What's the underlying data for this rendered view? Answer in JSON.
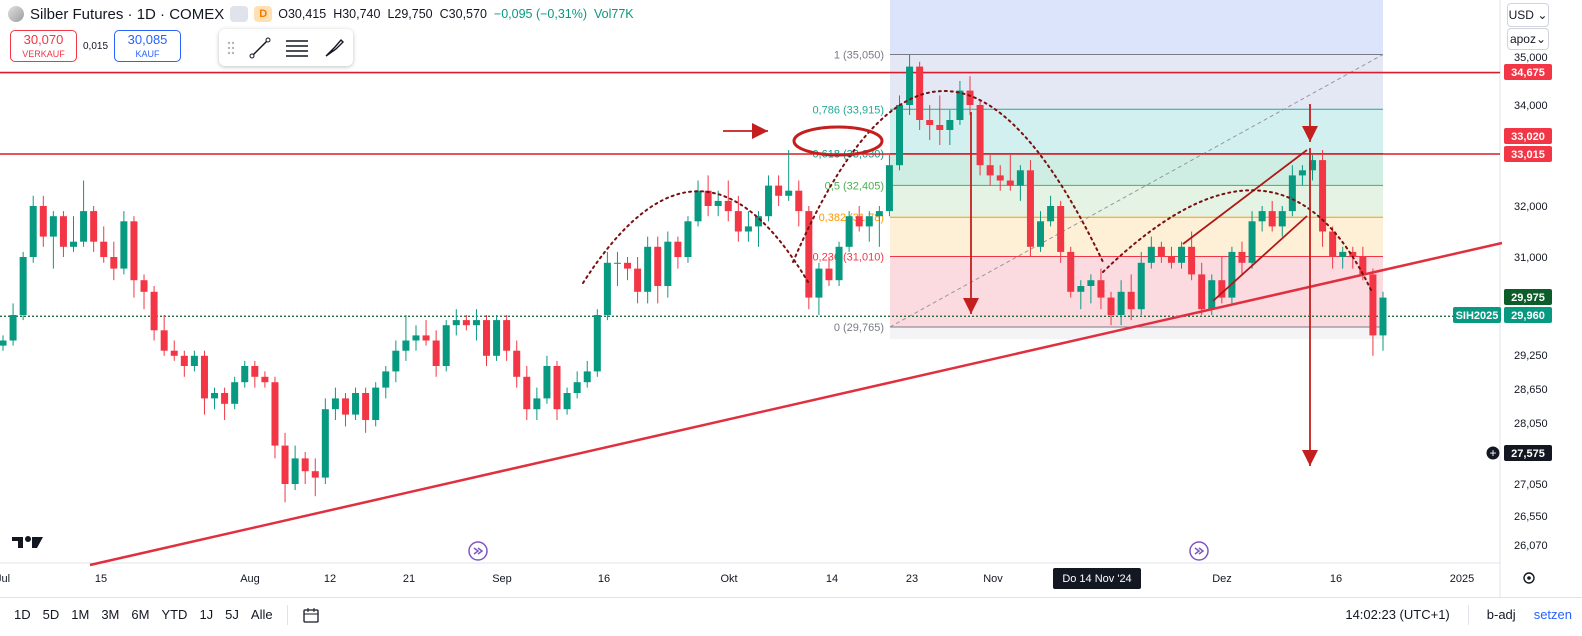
{
  "header": {
    "title": "Silber Futures · 1D · COMEX",
    "pill_d": "D",
    "open": "O30,415",
    "high": "H30,740",
    "low": "L29,750",
    "close": "C30,570",
    "change": "−0,095 (−0,31%)",
    "volume": "Vol77K"
  },
  "trade": {
    "sell_price": "30,070",
    "sell_label": "VERKAUF",
    "spread": "0,015",
    "buy_price": "30,085",
    "buy_label": "KAUF"
  },
  "currency": "USD",
  "currency_caret": "⌄",
  "scale_mode": "apoz",
  "bottom": {
    "timeframes": [
      "1D",
      "5D",
      "1M",
      "3M",
      "6M",
      "YTD",
      "1J",
      "5J",
      "Alle"
    ],
    "time": "14:02:23 (UTC+1)",
    "adj": "b-adj",
    "settings": "setzen"
  },
  "colors": {
    "up": "#089981",
    "down": "#f23645",
    "line": "#e03040",
    "dark_red": "#b01818",
    "grid": "#f0f3fa"
  },
  "chart_data": {
    "type": "candlestick",
    "y_axis_ticks": [
      "35,000",
      "34,000",
      "32,000",
      "31,000",
      "29,250",
      "28,650",
      "28,050",
      "27,050",
      "26,550",
      "26,070"
    ],
    "x_axis_ticks": [
      "Jul",
      "15",
      "Aug",
      "12",
      "21",
      "Sep",
      "16",
      "Okt",
      "14",
      "23",
      "Nov",
      "Dez",
      "16",
      "2025"
    ],
    "crosshair_label": "Do 14 Nov '24",
    "price_labels": [
      {
        "text": "34,675",
        "color": "#f23645"
      },
      {
        "text": "33,020",
        "color": "#f23645"
      },
      {
        "text": "33,015",
        "color": "#f23645"
      },
      {
        "text": "29,975",
        "color": "#0d5d2a"
      },
      {
        "text": "SIH2025",
        "color": "#089981"
      },
      {
        "text": "29,960",
        "color": "#089981"
      },
      {
        "text": "27,575",
        "color": "#131722"
      }
    ],
    "fib_levels": [
      {
        "label": "1 (35,050)",
        "value": 35.05,
        "color": "#787b86"
      },
      {
        "label": "0,786 (33,915)",
        "value": 33.915,
        "color": "#22ab94"
      },
      {
        "label": "0,618 (33,030)",
        "value": 33.03,
        "color": "#089981"
      },
      {
        "label": "0,5 (32,405)",
        "value": 32.405,
        "color": "#4caf50"
      },
      {
        "label": "0,382 (31,78)",
        "value": 31.78,
        "color": "#ff9800"
      },
      {
        "label": "0,236 (31,010)",
        "value": 31.01,
        "color": "#f23645"
      },
      {
        "label": "0 (29,765)",
        "value": 29.765,
        "color": "#787b86"
      }
    ],
    "horizontal_lines": [
      34.675,
      33.02,
      29.975
    ],
    "candles": [
      [
        29.4,
        29.6,
        29.3,
        29.5
      ],
      [
        29.5,
        30.2,
        29.4,
        30.0
      ],
      [
        30.0,
        31.1,
        29.9,
        31.0
      ],
      [
        31.0,
        32.2,
        30.9,
        32.0
      ],
      [
        32.0,
        32.2,
        31.2,
        31.4
      ],
      [
        31.4,
        31.9,
        30.8,
        31.8
      ],
      [
        31.8,
        31.9,
        31.0,
        31.2
      ],
      [
        31.2,
        31.8,
        31.1,
        31.3
      ],
      [
        31.3,
        32.5,
        31.2,
        31.9
      ],
      [
        31.9,
        32.0,
        31.1,
        31.3
      ],
      [
        31.3,
        31.6,
        30.9,
        31.0
      ],
      [
        31.0,
        31.3,
        30.6,
        30.8
      ],
      [
        30.8,
        31.9,
        30.7,
        31.7
      ],
      [
        31.7,
        31.8,
        30.3,
        30.6
      ],
      [
        30.6,
        30.7,
        30.1,
        30.4
      ],
      [
        30.4,
        30.5,
        29.5,
        29.7
      ],
      [
        29.7,
        30.0,
        29.2,
        29.3
      ],
      [
        29.3,
        29.5,
        29.1,
        29.2
      ],
      [
        29.2,
        29.3,
        28.8,
        29.0
      ],
      [
        29.0,
        29.3,
        28.9,
        29.2
      ],
      [
        29.2,
        29.3,
        28.1,
        28.4
      ],
      [
        28.4,
        28.6,
        28.2,
        28.5
      ],
      [
        28.5,
        28.6,
        28.0,
        28.3
      ],
      [
        28.3,
        28.8,
        28.2,
        28.7
      ],
      [
        28.7,
        29.1,
        28.6,
        29.0
      ],
      [
        29.0,
        29.1,
        28.6,
        28.8
      ],
      [
        28.8,
        28.9,
        28.6,
        28.7
      ],
      [
        28.7,
        28.8,
        27.4,
        27.6
      ],
      [
        27.6,
        27.8,
        26.7,
        27.0
      ],
      [
        27.0,
        27.6,
        26.9,
        27.4
      ],
      [
        27.4,
        27.5,
        27.0,
        27.2
      ],
      [
        27.2,
        27.4,
        26.8,
        27.1
      ],
      [
        27.1,
        28.4,
        27.0,
        28.2
      ],
      [
        28.2,
        28.6,
        28.0,
        28.4
      ],
      [
        28.4,
        28.5,
        27.9,
        28.1
      ],
      [
        28.1,
        28.6,
        28.0,
        28.5
      ],
      [
        28.5,
        28.6,
        27.8,
        28.0
      ],
      [
        28.0,
        28.7,
        27.9,
        28.6
      ],
      [
        28.6,
        29.0,
        28.4,
        28.9
      ],
      [
        28.9,
        29.5,
        28.7,
        29.3
      ],
      [
        29.3,
        30.0,
        29.1,
        29.5
      ],
      [
        29.5,
        29.8,
        29.3,
        29.6
      ],
      [
        29.6,
        29.9,
        29.4,
        29.5
      ],
      [
        29.5,
        29.7,
        28.8,
        29.0
      ],
      [
        29.0,
        29.9,
        28.9,
        29.8
      ],
      [
        29.8,
        30.1,
        29.6,
        29.9
      ],
      [
        29.9,
        30.0,
        29.7,
        29.8
      ],
      [
        29.8,
        30.1,
        29.5,
        29.9
      ],
      [
        29.9,
        30.0,
        29.0,
        29.2
      ],
      [
        29.2,
        30.0,
        29.1,
        29.9
      ],
      [
        29.9,
        30.0,
        29.1,
        29.3
      ],
      [
        29.3,
        29.5,
        28.6,
        28.8
      ],
      [
        28.8,
        29.0,
        28.0,
        28.2
      ],
      [
        28.2,
        28.6,
        28.0,
        28.4
      ],
      [
        28.4,
        29.2,
        28.3,
        29.0
      ],
      [
        29.0,
        29.1,
        28.0,
        28.2
      ],
      [
        28.2,
        28.6,
        28.1,
        28.5
      ],
      [
        28.5,
        28.9,
        28.4,
        28.7
      ],
      [
        28.7,
        29.1,
        28.6,
        28.9
      ],
      [
        28.9,
        30.1,
        28.8,
        30.0
      ],
      [
        30.0,
        31.1,
        29.9,
        30.9
      ],
      [
        30.9,
        31.1,
        30.5,
        30.9
      ],
      [
        30.9,
        31.0,
        30.6,
        30.8
      ],
      [
        30.8,
        31.0,
        30.2,
        30.4
      ],
      [
        30.4,
        31.4,
        30.2,
        31.2
      ],
      [
        31.2,
        31.4,
        30.2,
        30.5
      ],
      [
        30.5,
        31.5,
        30.3,
        31.3
      ],
      [
        31.3,
        31.4,
        30.8,
        31.0
      ],
      [
        31.0,
        31.8,
        30.9,
        31.7
      ],
      [
        31.7,
        32.5,
        31.6,
        32.3
      ],
      [
        32.3,
        32.6,
        31.8,
        32.0
      ],
      [
        32.0,
        32.3,
        31.8,
        32.1
      ],
      [
        32.1,
        32.5,
        31.7,
        31.9
      ],
      [
        31.9,
        32.2,
        31.3,
        31.5
      ],
      [
        31.5,
        31.9,
        31.3,
        31.6
      ],
      [
        31.6,
        31.9,
        31.2,
        31.8
      ],
      [
        31.8,
        32.6,
        31.7,
        32.4
      ],
      [
        32.4,
        32.6,
        32.0,
        32.2
      ],
      [
        32.2,
        33.1,
        32.1,
        32.3
      ],
      [
        32.3,
        32.5,
        31.6,
        31.9
      ],
      [
        31.9,
        32.0,
        30.1,
        30.3
      ],
      [
        30.3,
        30.9,
        30.0,
        30.8
      ],
      [
        30.8,
        31.0,
        30.5,
        30.6
      ],
      [
        30.6,
        31.3,
        30.5,
        31.2
      ],
      [
        31.2,
        31.9,
        31.1,
        31.8
      ],
      [
        31.8,
        32.0,
        31.5,
        31.6
      ],
      [
        31.6,
        31.9,
        31.3,
        31.8
      ],
      [
        31.8,
        32.0,
        31.2,
        31.9
      ],
      [
        31.9,
        33.0,
        31.8,
        32.8
      ],
      [
        32.8,
        34.2,
        32.7,
        34.0
      ],
      [
        34.0,
        35.05,
        33.8,
        34.8
      ],
      [
        34.8,
        34.9,
        33.5,
        33.7
      ],
      [
        33.7,
        34.0,
        33.3,
        33.6
      ],
      [
        33.6,
        34.2,
        33.2,
        33.5
      ],
      [
        33.5,
        33.9,
        33.2,
        33.7
      ],
      [
        33.7,
        34.5,
        33.6,
        34.3
      ],
      [
        34.3,
        34.6,
        33.8,
        34.0
      ],
      [
        34.0,
        34.1,
        32.6,
        32.8
      ],
      [
        32.8,
        33.0,
        32.4,
        32.6
      ],
      [
        32.6,
        32.8,
        32.3,
        32.5
      ],
      [
        32.5,
        33.0,
        32.3,
        32.4
      ],
      [
        32.4,
        32.8,
        32.1,
        32.7
      ],
      [
        32.7,
        32.9,
        31.0,
        31.2
      ],
      [
        31.2,
        31.9,
        31.1,
        31.7
      ],
      [
        31.7,
        32.2,
        31.6,
        32.0
      ],
      [
        32.0,
        32.1,
        30.9,
        31.1
      ],
      [
        31.1,
        31.2,
        30.3,
        30.4
      ],
      [
        30.4,
        30.6,
        30.1,
        30.5
      ],
      [
        30.5,
        30.7,
        30.2,
        30.6
      ],
      [
        30.6,
        30.8,
        30.1,
        30.3
      ],
      [
        30.3,
        30.4,
        29.8,
        30.0
      ],
      [
        30.0,
        30.6,
        29.8,
        30.4
      ],
      [
        30.4,
        30.7,
        29.9,
        30.1
      ],
      [
        30.1,
        31.1,
        30.0,
        30.9
      ],
      [
        30.9,
        31.4,
        30.8,
        31.2
      ],
      [
        31.2,
        31.3,
        30.9,
        31.0
      ],
      [
        31.0,
        31.2,
        30.8,
        30.9
      ],
      [
        30.9,
        31.3,
        30.8,
        31.2
      ],
      [
        31.2,
        31.5,
        30.6,
        30.7
      ],
      [
        30.7,
        30.9,
        30.0,
        30.1
      ],
      [
        30.1,
        30.7,
        30.0,
        30.6
      ],
      [
        30.6,
        31.0,
        30.2,
        30.3
      ],
      [
        30.3,
        31.2,
        30.2,
        31.1
      ],
      [
        31.1,
        31.3,
        30.7,
        30.9
      ],
      [
        30.9,
        31.9,
        30.8,
        31.7
      ],
      [
        31.7,
        32.0,
        31.5,
        31.9
      ],
      [
        31.9,
        32.1,
        31.5,
        31.6
      ],
      [
        31.6,
        32.0,
        31.4,
        31.9
      ],
      [
        31.9,
        32.8,
        31.8,
        32.6
      ],
      [
        32.6,
        32.8,
        32.4,
        32.7
      ],
      [
        32.7,
        33.0,
        32.5,
        32.9
      ],
      [
        32.9,
        33.1,
        31.2,
        31.5
      ],
      [
        31.5,
        31.6,
        30.8,
        31.0
      ],
      [
        31.0,
        31.2,
        30.8,
        31.1
      ],
      [
        31.1,
        31.2,
        30.8,
        31.0
      ],
      [
        31.0,
        31.2,
        30.6,
        30.7
      ],
      [
        30.7,
        30.8,
        29.2,
        29.6
      ],
      [
        29.6,
        30.4,
        29.3,
        30.3
      ]
    ]
  }
}
